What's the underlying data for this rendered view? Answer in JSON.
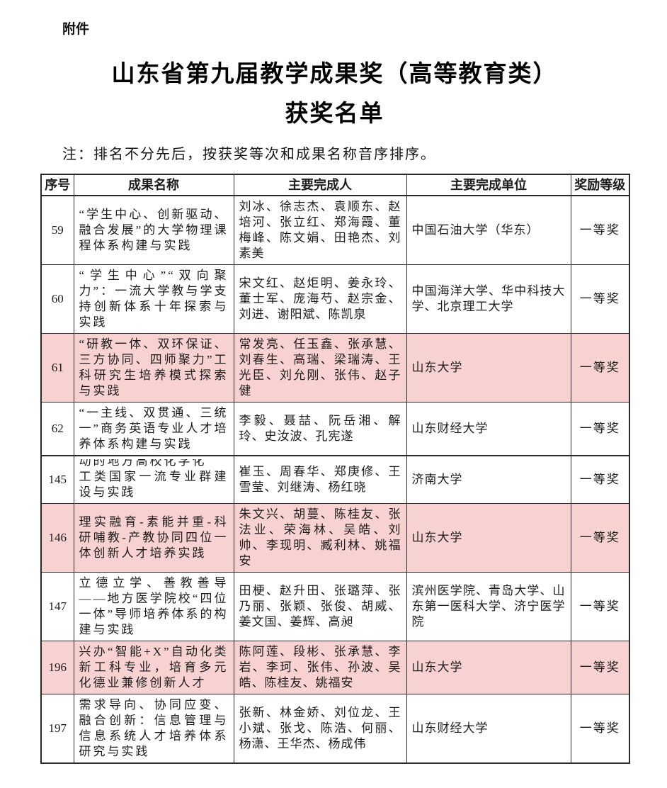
{
  "page": {
    "attachment_label": "附件",
    "title_line1": "山东省第九届教学成果奖（高等教育类）",
    "title_line2": "获奖名单",
    "note": "注：排名不分先后，按获奖等次和成果名称音序排序。"
  },
  "table": {
    "highlight_color": "#f8d2d0",
    "columns": [
      {
        "key": "no",
        "label": "序号"
      },
      {
        "key": "name",
        "label": "成果名称"
      },
      {
        "key": "people",
        "label": "主要完成人"
      },
      {
        "key": "unit",
        "label": "主要完成单位"
      },
      {
        "key": "award",
        "label": "奖励等级"
      }
    ],
    "rows": [
      {
        "no": "59",
        "name": "“学生中心、创新驱动、融合发展”的大学物理课程体系构建与实践",
        "people": "刘冰、徐志杰、袁顺东、赵培河、张立红、郑海霞、董梅峰、陈文娟、田艳杰、刘素美",
        "unit": "中国石油大学（华东）",
        "award": "一等奖",
        "highlight": false
      },
      {
        "no": "60",
        "name": "“学生中心”“双向聚力”：一流大学教与学支持创新体系十年探索与实践",
        "people": "宋文红、赵炬明、姜永玲、董士军、庞海芍、赵宗金、刘进、谢阳斌、陈凯泉",
        "unit": "中国海洋大学、华中科技大学、北京理工大学",
        "award": "一等奖",
        "highlight": false
      },
      {
        "no": "61",
        "name": "“研教一体、双环保证、三方协同、四师聚力”工科研究生培养模式探索与实践",
        "people": "常发亮、任玉鑫、张承慧、刘春生、高瑞、梁瑞涛、王光臣、刘允刚、张伟、赵子健",
        "unit": "山东大学",
        "award": "一等奖",
        "highlight": true
      },
      {
        "no": "62",
        "name": "“一主线、双贯通、三统一”商务英语专业人才培养体系构建与实践",
        "people": "李毅、聂喆、阮岳湘、解玲、史汝波、孔宪遂",
        "unit": "山东财经大学",
        "award": "一等奖",
        "highlight": false
      },
      {
        "no": "145",
        "name_clipped_line": "动的地方高校化学化",
        "name": "工类国家一流专业群建设与实践",
        "people": "崔玉、周春华、郑庚修、王雪莹、刘继涛、杨红晓",
        "unit": "济南大学",
        "award": "一等奖",
        "highlight": false,
        "page_break": true
      },
      {
        "no": "146",
        "name": "理实融育-素能并重-科研哺教-产教协同四位一体创新人才培养实践",
        "people": "朱文兴、胡蔓、陈桂友、张法业、荣海林、吴皓、刘帅、李现明、臧利林、姚福安",
        "unit": "山东大学",
        "award": "一等奖",
        "highlight": true
      },
      {
        "no": "147",
        "name": "立德立学、善教善导——地方医学院校“四位一体”导师培养体系的构建与实践",
        "people": "田梗、赵升田、张璐萍、张乃丽、张颖、张俊、胡威、姜文国、姜辉、高昶",
        "unit": "滨州医学院、青岛大学、山东第一医科大学、济宁医学院",
        "award": "一等奖",
        "highlight": false
      },
      {
        "no": "196",
        "name": "兴办“智能+X”自动化类新工科专业，培育多元化德业兼修创新人才",
        "people": "陈阿莲、段彬、张承慧、李岩、李珂、张伟、孙波、吴皓、陈桂友、姚福安",
        "unit": "山东大学",
        "award": "一等奖",
        "highlight": true
      },
      {
        "no": "197",
        "name": "需求导向、协同应变、融合创新：信息管理与信息系统人才培养体系研究与实践",
        "people": "张新、林金娇、刘位龙、王小斌、张戈、陈浩、何丽、杨潇、王华杰、杨成伟",
        "unit": "山东财经大学",
        "award": "一等奖",
        "highlight": false
      }
    ]
  }
}
